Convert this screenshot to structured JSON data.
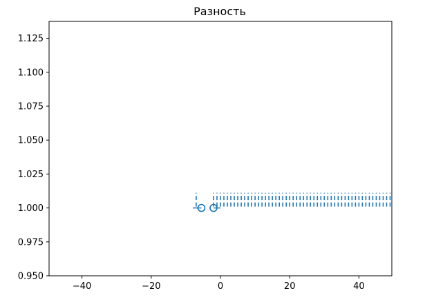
{
  "chart_data": {
    "type": "scatter",
    "title": "Разность",
    "xlabel": "",
    "ylabel": "",
    "xlim": [
      -49.5,
      49.5
    ],
    "ylim": [
      0.95,
      1.1375
    ],
    "xticks": [
      -40,
      -20,
      0,
      20,
      40
    ],
    "xtick_labels": [
      "−40",
      "−20",
      "0",
      "20",
      "40"
    ],
    "yticks": [
      0.95,
      0.975,
      1.0,
      1.025,
      1.05,
      1.075,
      1.1,
      1.125
    ],
    "ytick_labels": [
      "0.950",
      "0.975",
      "1.000",
      "1.025",
      "1.050",
      "1.075",
      "1.100",
      "1.125"
    ],
    "grid": false,
    "line_color": "#1f77b4",
    "series": [
      {
        "marker": "dashed-stem",
        "x": [
          -7,
          -2,
          -1,
          0,
          1,
          2,
          3,
          4,
          5,
          6,
          7,
          8,
          9,
          10,
          11,
          12,
          13,
          14,
          15,
          16,
          17,
          18,
          19,
          20,
          21,
          22,
          23,
          24,
          25,
          26,
          27,
          28,
          29,
          30,
          31,
          32,
          33,
          34,
          35,
          36,
          37,
          38,
          39,
          40,
          41,
          42,
          43,
          44,
          45,
          46,
          47,
          48,
          49
        ],
        "y": [
          1.0,
          1.0,
          1.0,
          1.0,
          1.0,
          1.0,
          1.0,
          1.0,
          1.0,
          1.0,
          1.0,
          1.0,
          1.0,
          1.0,
          1.0,
          1.0,
          1.0,
          1.0,
          1.0,
          1.0,
          1.0,
          1.0,
          1.0,
          1.0,
          1.0,
          1.0,
          1.0,
          1.0,
          1.0,
          1.0,
          1.0,
          1.0,
          1.0,
          1.0,
          1.0,
          1.0,
          1.0,
          1.0,
          1.0,
          1.0,
          1.0,
          1.0,
          1.0,
          1.0,
          1.0,
          1.0,
          1.0,
          1.0,
          1.0,
          1.0,
          1.0,
          1.0,
          1.0
        ]
      },
      {
        "marker": "open-circle",
        "x": [
          -5.5,
          -2
        ],
        "y": [
          1.0,
          1.0
        ]
      }
    ],
    "baseline": {
      "y": 1.0,
      "segments": [
        [
          -8,
          -5.5
        ],
        [
          -2,
          0
        ]
      ]
    }
  }
}
